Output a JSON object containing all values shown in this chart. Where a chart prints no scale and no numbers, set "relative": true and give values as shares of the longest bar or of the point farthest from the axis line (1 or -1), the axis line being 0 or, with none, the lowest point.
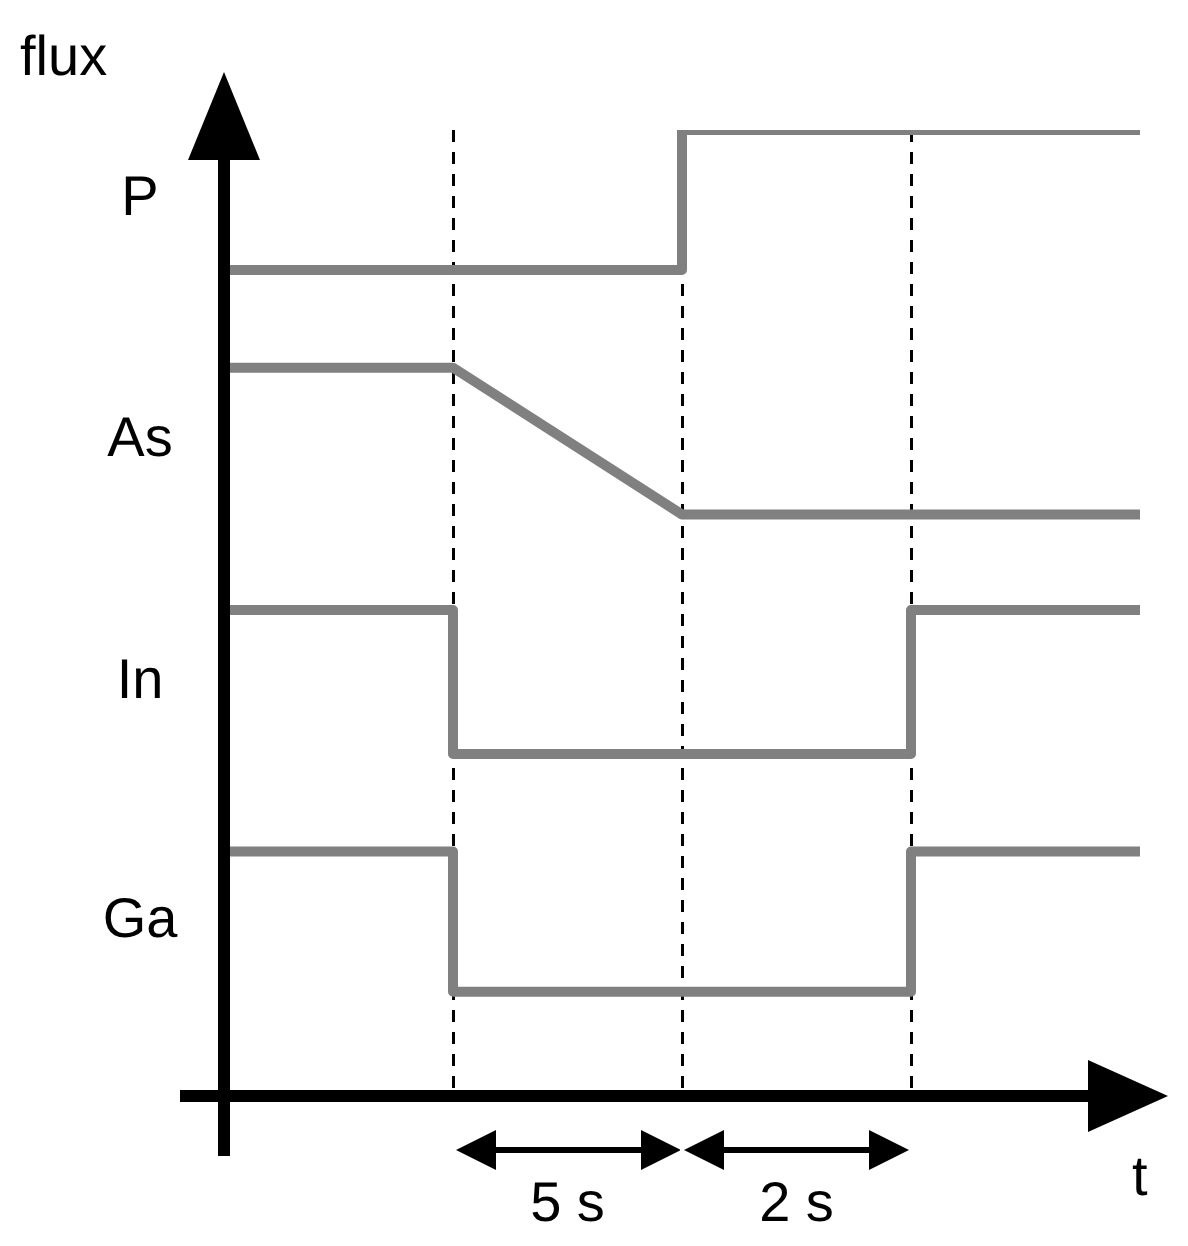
{
  "chart_data": {
    "type": "step",
    "xlabel": "t",
    "ylabel": "flux",
    "relative": true,
    "categories": [
      null,
      null,
      null,
      null,
      null
    ],
    "series": [
      {
        "name": "P",
        "color": "#808080",
        "values": [
          0.855,
          0.855,
          1,
          1,
          1
        ]
      },
      {
        "name": "As",
        "type": "line",
        "color": "#808080",
        "values": [
          0.754,
          0.754,
          0.602,
          0.602,
          0.602
        ]
      },
      {
        "name": "In",
        "color": "#808080",
        "values": [
          0.503,
          0.354,
          0.354,
          0.503,
          0.503
        ]
      },
      {
        "name": "Ga",
        "color": "#808080",
        "values": [
          0.253,
          0.108,
          0.108,
          0.253,
          0.253
        ]
      }
    ],
    "annotations": [
      "5 s",
      "2 s"
    ],
    "tick_labels": false,
    "legend": false,
    "grid": "x",
    "marker": "none",
    "line_style": "solid"
  }
}
